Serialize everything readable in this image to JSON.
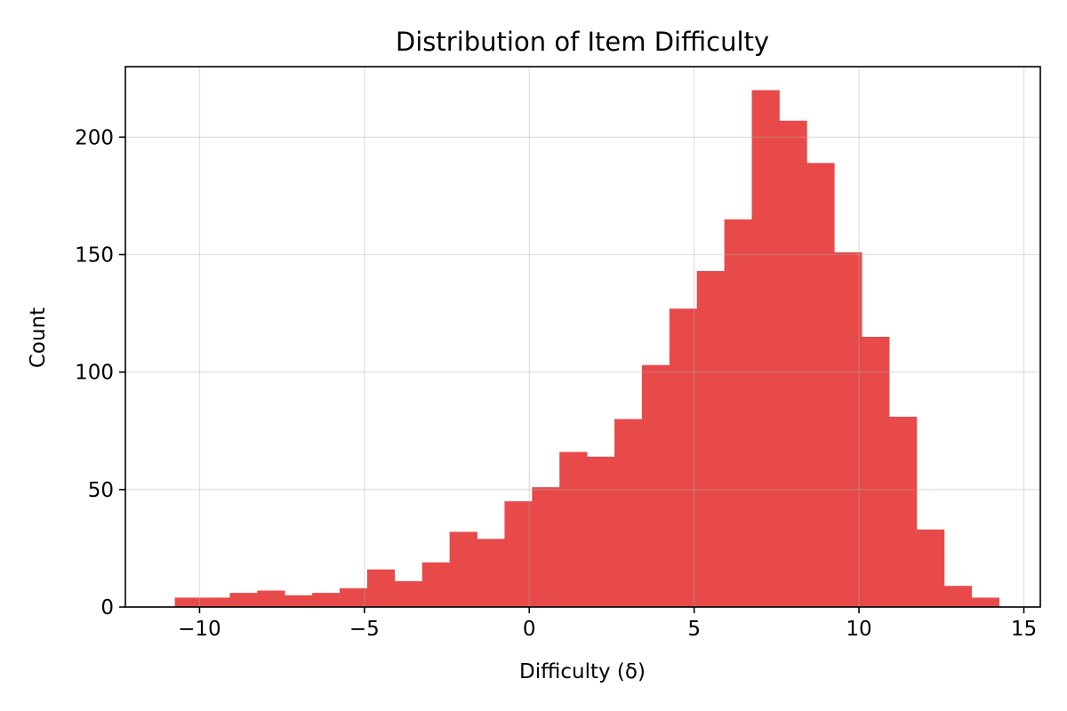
{
  "chart_data": {
    "type": "bar",
    "title": "Distribution of Item Difficulty",
    "xlabel": "Difficulty (δ)",
    "ylabel": "Count",
    "xlim": [
      -12.25,
      15.5
    ],
    "ylim": [
      0,
      230
    ],
    "x_ticks": [
      -10,
      -5,
      0,
      5,
      10,
      15
    ],
    "x_tick_labels": [
      "−10",
      "−5",
      "0",
      "5",
      "10",
      "15"
    ],
    "y_ticks": [
      0,
      50,
      100,
      150,
      200
    ],
    "y_tick_labels": [
      "0",
      "50",
      "100",
      "150",
      "200"
    ],
    "grid": true,
    "bar_color": "#e84a4a",
    "bin_start": -10.75,
    "bin_width": 0.8333,
    "values": [
      4,
      4,
      6,
      7,
      5,
      6,
      8,
      16,
      11,
      19,
      32,
      29,
      45,
      51,
      66,
      64,
      80,
      103,
      127,
      143,
      165,
      220,
      207,
      189,
      151,
      115,
      81,
      33,
      9,
      4
    ]
  }
}
